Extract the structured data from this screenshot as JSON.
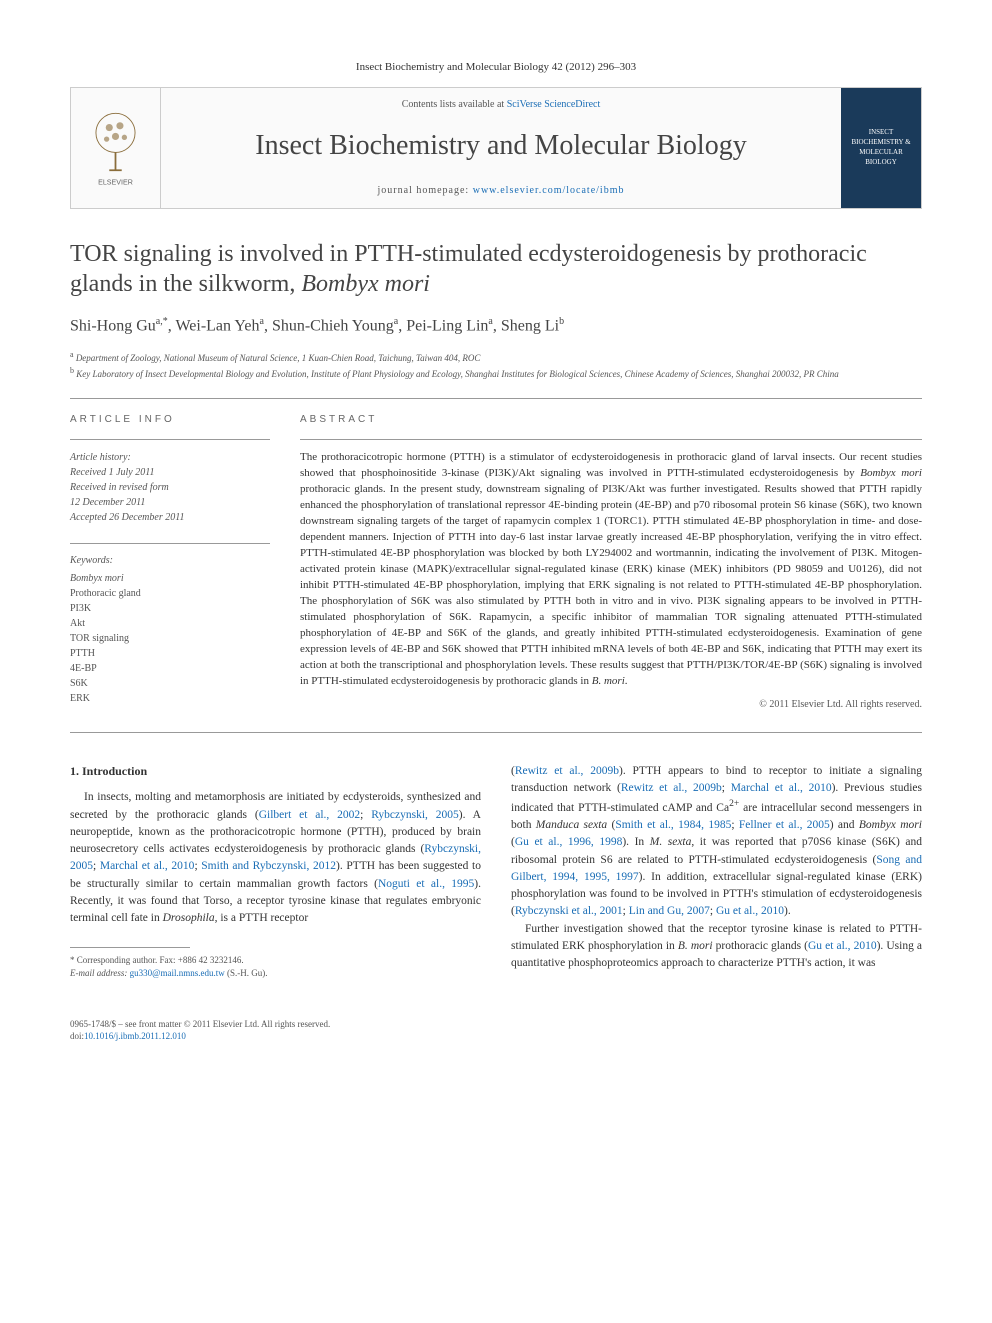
{
  "journal_ref": "Insect Biochemistry and Molecular Biology 42 (2012) 296–303",
  "header": {
    "contents_prefix": "Contents lists available at ",
    "contents_link": "SciVerse ScienceDirect",
    "journal_name": "Insect Biochemistry and Molecular Biology",
    "homepage_prefix": "journal homepage: ",
    "homepage_link": "www.elsevier.com/locate/ibmb",
    "cover_text": "INSECT BIOCHEMISTRY & MOLECULAR BIOLOGY"
  },
  "title_html": "TOR signaling is involved in PTTH-stimulated ecdysteroidogenesis by prothoracic glands in the silkworm, <em>Bombyx mori</em>",
  "authors_html": "Shi-Hong Gu<sup>a,*</sup>, Wei-Lan Yeh<sup>a</sup>, Shun-Chieh Young<sup>a</sup>, Pei-Ling Lin<sup>a</sup>, Sheng Li<sup>b</sup>",
  "affiliations": [
    "<sup>a</sup> Department of Zoology, National Museum of Natural Science, 1 Kuan-Chien Road, Taichung, Taiwan 404, ROC",
    "<sup>b</sup> Key Laboratory of Insect Developmental Biology and Evolution, Institute of Plant Physiology and Ecology, Shanghai Institutes for Biological Sciences, Chinese Academy of Sciences, Shanghai 200032, PR China"
  ],
  "article_info_heading": "ARTICLE INFO",
  "history_label": "Article history:",
  "history": [
    "Received 1 July 2011",
    "Received in revised form",
    "12 December 2011",
    "Accepted 26 December 2011"
  ],
  "keywords_label": "Keywords:",
  "keywords": [
    "Bombyx mori",
    "Prothoracic gland",
    "PI3K",
    "Akt",
    "TOR signaling",
    "PTTH",
    "4E-BP",
    "S6K",
    "ERK"
  ],
  "abstract_heading": "ABSTRACT",
  "abstract_html": "The prothoracicotropic hormone (PTTH) is a stimulator of ecdysteroidogenesis in prothoracic gland of larval insects. Our recent studies showed that phosphoinositide 3-kinase (PI3K)/Akt signaling was involved in PTTH-stimulated ecdysteroidogenesis by <em>Bombyx mori</em> prothoracic glands. In the present study, downstream signaling of PI3K/Akt was further investigated. Results showed that PTTH rapidly enhanced the phosphorylation of translational repressor 4E-binding protein (4E-BP) and p70 ribosomal protein S6 kinase (S6K), two known downstream signaling targets of the target of rapamycin complex 1 (TORC1). PTTH stimulated 4E-BP phosphorylation in time- and dose-dependent manners. Injection of PTTH into day-6 last instar larvae greatly increased 4E-BP phosphorylation, verifying the in vitro effect. PTTH-stimulated 4E-BP phosphorylation was blocked by both LY294002 and wortmannin, indicating the involvement of PI3K. Mitogen-activated protein kinase (MAPK)/extracellular signal-regulated kinase (ERK) kinase (MEK) inhibitors (PD 98059 and U0126), did not inhibit PTTH-stimulated 4E-BP phosphorylation, implying that ERK signaling is not related to PTTH-stimulated 4E-BP phosphorylation. The phosphorylation of S6K was also stimulated by PTTH both in vitro and in vivo. PI3K signaling appears to be involved in PTTH-stimulated phosphorylation of S6K. Rapamycin, a specific inhibitor of mammalian TOR signaling attenuated PTTH-stimulated phosphorylation of 4E-BP and S6K of the glands, and greatly inhibited PTTH-stimulated ecdysteroidogenesis. Examination of gene expression levels of 4E-BP and S6K showed that PTTH inhibited mRNA levels of both 4E-BP and S6K, indicating that PTTH may exert its action at both the transcriptional and phosphorylation levels. These results suggest that PTTH/PI3K/TOR/4E-BP (S6K) signaling is involved in PTTH-stimulated ecdysteroidogenesis by prothoracic glands in <em>B. mori</em>.",
  "copyright": "© 2011 Elsevier Ltd. All rights reserved.",
  "intro_heading": "1. Introduction",
  "intro_left_html": "In insects, molting and metamorphosis are initiated by ecdysteroids, synthesized and secreted by the prothoracic glands (<a>Gilbert et al., 2002</a>; <a>Rybczynski, 2005</a>). A neuropeptide, known as the prothoracicotropic hormone (PTTH), produced by brain neurosecretory cells activates ecdysteroidogenesis by prothoracic glands (<a>Rybczynski, 2005</a>; <a>Marchal et al., 2010</a>; <a>Smith and Rybczynski, 2012</a>). PTTH has been suggested to be structurally similar to certain mammalian growth factors (<a>Noguti et al., 1995</a>). Recently, it was found that Torso, a receptor tyrosine kinase that regulates embryonic terminal cell fate in <em>Drosophila</em>, is a PTTH receptor",
  "intro_right_html": "(<a>Rewitz et al., 2009b</a>). PTTH appears to bind to receptor to initiate a signaling transduction network (<a>Rewitz et al., 2009b</a>; <a>Marchal et al., 2010</a>). Previous studies indicated that PTTH-stimulated cAMP and Ca<sup>2+</sup> are intracellular second messengers in both <em>Manduca sexta</em> (<a>Smith et al., 1984, 1985</a>; <a>Fellner et al., 2005</a>) and <em>Bombyx mori</em> (<a>Gu et al., 1996, 1998</a>). In <em>M. sexta</em>, it was reported that p70S6 kinase (S6K) and ribosomal protein S6 are related to PTTH-stimulated ecdysteroidogenesis (<a>Song and Gilbert, 1994, 1995, 1997</a>). In addition, extracellular signal-regulated kinase (ERK) phosphorylation was found to be involved in PTTH's stimulation of ecdysteroidogenesis (<a>Rybczynski et al., 2001</a>; <a>Lin and Gu, 2007</a>; <a>Gu et al., 2010</a>).",
  "intro_right_p2_html": "Further investigation showed that the receptor tyrosine kinase is related to PTTH-stimulated ERK phosphorylation in <em>B. mori</em> prothoracic glands (<a>Gu et al., 2010</a>). Using a quantitative phosphoproteomics approach to characterize PTTH's action, it was",
  "footnote": {
    "corresponding": "* Corresponding author. Fax: +886 42 3232146.",
    "email_label": "E-mail address:",
    "email": "gu330@mail.nmns.edu.tw",
    "email_suffix": " (S.-H. Gu)."
  },
  "footer": {
    "issn": "0965-1748/$ – see front matter © 2011 Elsevier Ltd. All rights reserved.",
    "doi_label": "doi:",
    "doi": "10.1016/j.ibmb.2011.12.010"
  },
  "colors": {
    "link": "#1a6db5",
    "text": "#333333",
    "muted": "#555555",
    "rule": "#999999",
    "cover_bg": "#1a3a5a"
  }
}
